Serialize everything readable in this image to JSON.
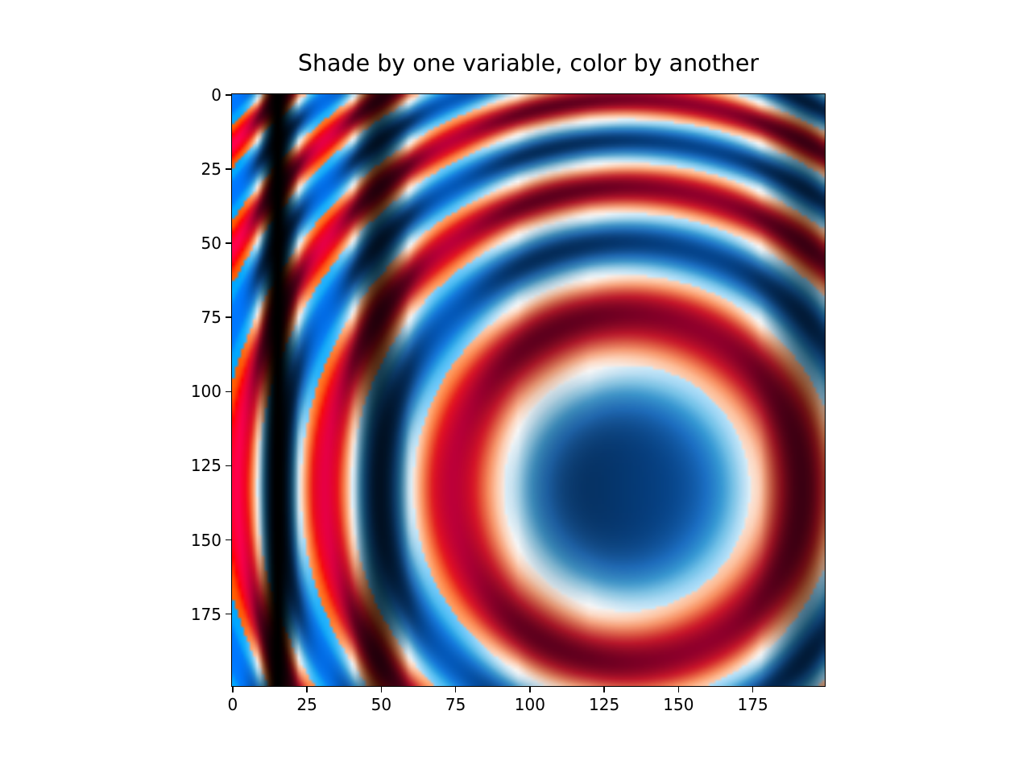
{
  "chart_data": {
    "type": "heatmap",
    "title": "Shade by one variable, color by another",
    "xlabel": "",
    "ylabel": "",
    "colormap": "RdBu",
    "shading": "hillshade, azimuth 315, altitude 45",
    "grid": false,
    "xlim": [
      -0.5,
      199.5
    ],
    "ylim": [
      199.5,
      -0.5
    ],
    "xticks": [
      0,
      25,
      50,
      75,
      100,
      125,
      150,
      175
    ],
    "yticks": [
      0,
      25,
      50,
      75,
      100,
      125,
      150,
      175
    ],
    "xtick_labels": [
      "0",
      "25",
      "50",
      "75",
      "100",
      "125",
      "150",
      "175"
    ],
    "ytick_labels": [
      "0",
      "25",
      "50",
      "75",
      "100",
      "125",
      "150",
      "175"
    ],
    "rows": 200,
    "cols": 200
  }
}
